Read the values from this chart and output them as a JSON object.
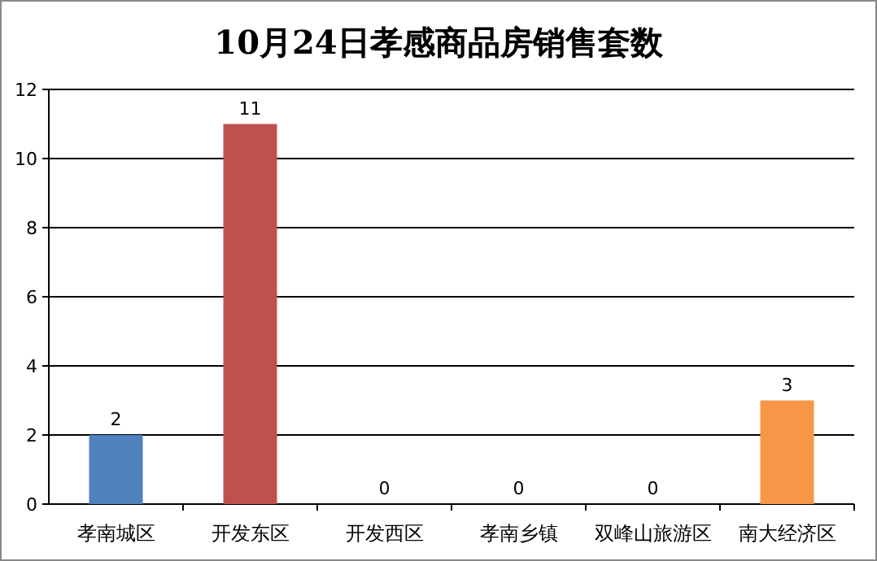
{
  "chart_data": {
    "type": "bar",
    "title": "10月24日孝感商品房销售套数",
    "categories": [
      "孝南城区",
      "开发东区",
      "开发西区",
      "孝南乡镇",
      "双峰山旅游区",
      "南大经济区"
    ],
    "values": [
      2,
      11,
      0,
      0,
      0,
      3
    ],
    "colors": [
      "#4f81bd",
      "#c0504d",
      "#9bbb59",
      "#8064a2",
      "#4bacc6",
      "#f79646"
    ],
    "ylim": [
      0,
      12
    ],
    "yticks": [
      0,
      2,
      4,
      6,
      8,
      10,
      12
    ],
    "grid": "y",
    "data_labels": true
  }
}
